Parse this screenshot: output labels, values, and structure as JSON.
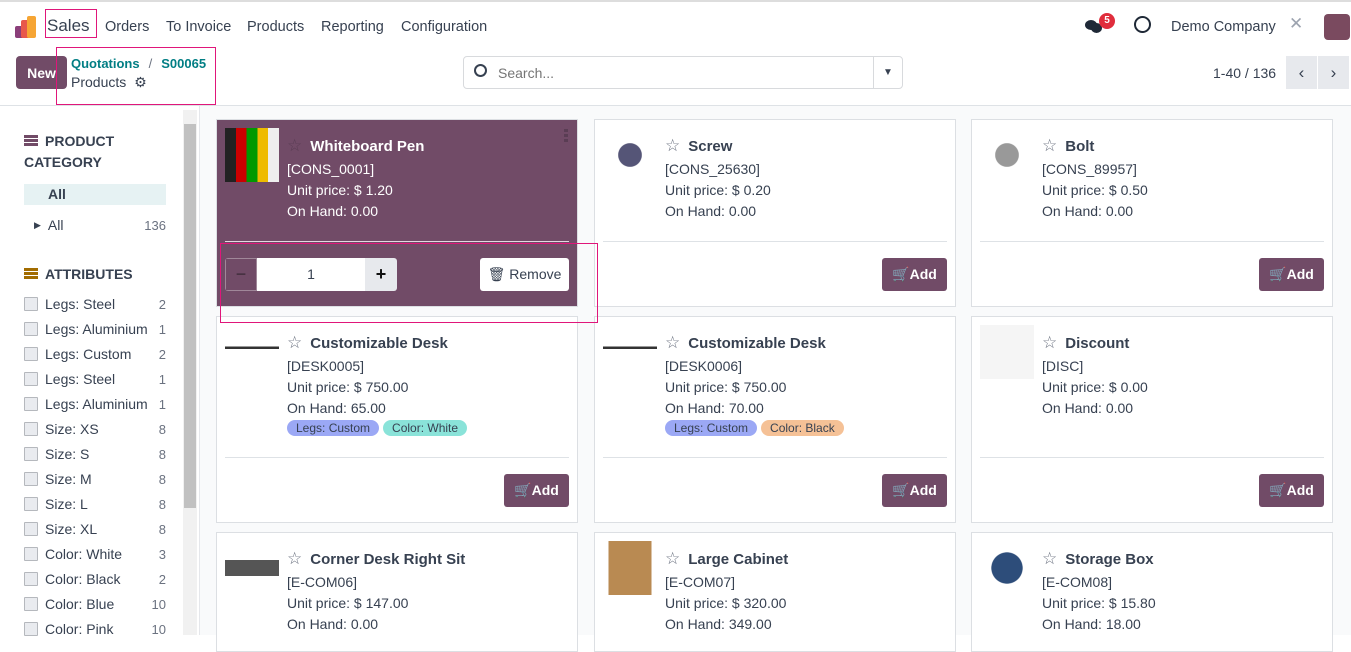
{
  "nav": {
    "app": "Sales",
    "menu": [
      "Orders",
      "To Invoice",
      "Products",
      "Reporting",
      "Configuration"
    ],
    "messages_badge": "5",
    "company": "Demo Company"
  },
  "control": {
    "new_label": "New",
    "breadcrumb": [
      "Quotations",
      "S00065"
    ],
    "current": "Products",
    "search_placeholder": "Search...",
    "pager": "1-40 / 136"
  },
  "sidebar": {
    "category_title": "PRODUCT CATEGORY",
    "category_selected": "All",
    "category_items": [
      {
        "label": "All",
        "count": "136"
      }
    ],
    "attributes_title": "ATTRIBUTES",
    "attributes": [
      {
        "label": "Legs: Steel",
        "count": "2"
      },
      {
        "label": "Legs: Aluminium",
        "count": "1"
      },
      {
        "label": "Legs: Custom",
        "count": "2"
      },
      {
        "label": "Legs: Steel",
        "count": "1"
      },
      {
        "label": "Legs: Aluminium",
        "count": "1"
      },
      {
        "label": "Size: XS",
        "count": "8"
      },
      {
        "label": "Size: S",
        "count": "8"
      },
      {
        "label": "Size: M",
        "count": "8"
      },
      {
        "label": "Size: L",
        "count": "8"
      },
      {
        "label": "Size: XL",
        "count": "8"
      },
      {
        "label": "Color: White",
        "count": "3"
      },
      {
        "label": "Color: Black",
        "count": "2"
      },
      {
        "label": "Color: Blue",
        "count": "10"
      },
      {
        "label": "Color: Pink",
        "count": "10"
      }
    ]
  },
  "products": [
    {
      "name": "Whiteboard Pen",
      "code": "[CONS_0001]",
      "price": "Unit price: $ 1.20",
      "onhand": "On Hand: 0.00",
      "selected": true,
      "qty": "1",
      "remove_label": "Remove"
    },
    {
      "name": "Screw",
      "code": "[CONS_25630]",
      "price": "Unit price: $ 0.20",
      "onhand": "On Hand: 0.00"
    },
    {
      "name": "Bolt",
      "code": "[CONS_89957]",
      "price": "Unit price: $ 0.50",
      "onhand": "On Hand: 0.00"
    },
    {
      "name": "Customizable Desk",
      "code": "[DESK0005]",
      "price": "Unit price: $ 750.00",
      "onhand": "On Hand: 65.00",
      "tags": [
        {
          "label": "Legs: Custom",
          "color": "#9ba8f5"
        },
        {
          "label": "Color: White",
          "color": "#8ae3d9"
        }
      ]
    },
    {
      "name": "Customizable Desk",
      "code": "[DESK0006]",
      "price": "Unit price: $ 750.00",
      "onhand": "On Hand: 70.00",
      "tags": [
        {
          "label": "Legs: Custom",
          "color": "#9ba8f5"
        },
        {
          "label": "Color: Black",
          "color": "#f5c196"
        }
      ]
    },
    {
      "name": "Discount",
      "code": "[DISC]",
      "price": "Unit price: $ 0.00",
      "onhand": "On Hand: 0.00"
    },
    {
      "name": "Corner Desk Right Sit",
      "code": "[E-COM06]",
      "price": "Unit price: $ 147.00",
      "onhand": "On Hand: 0.00"
    },
    {
      "name": "Large Cabinet",
      "code": "[E-COM07]",
      "price": "Unit price: $ 320.00",
      "onhand": "On Hand: 349.00"
    },
    {
      "name": "Storage Box",
      "code": "[E-COM08]",
      "price": "Unit price: $ 15.80",
      "onhand": "On Hand: 18.00"
    }
  ],
  "add_label": "Add",
  "colors": {
    "brand": "#714b67",
    "link": "#017e84",
    "badge": "#e02d3c"
  }
}
